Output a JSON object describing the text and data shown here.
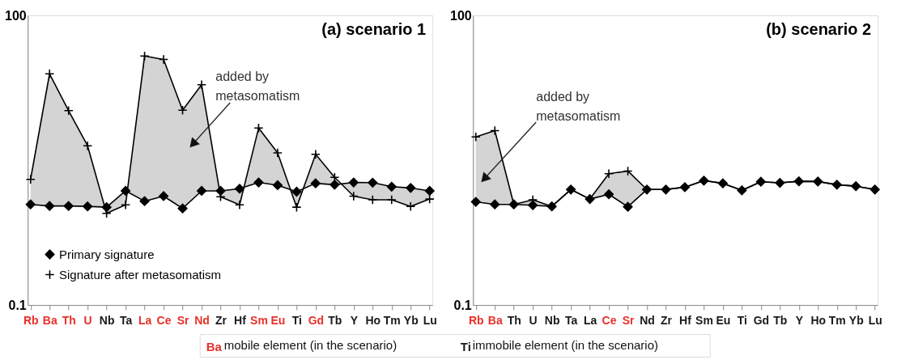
{
  "chart_data": [
    {
      "type": "line",
      "title": "(a) scenario 1",
      "log": true,
      "ylim": [
        0.1,
        100
      ],
      "yticks": [
        0.1,
        100
      ],
      "legend": "bottom left",
      "categories": [
        "Rb",
        "Ba",
        "Th",
        "U",
        "Nb",
        "Ta",
        "La",
        "Ce",
        "Sr",
        "Nd",
        "Zr",
        "Hf",
        "Sm",
        "Eu",
        "Ti",
        "Gd",
        "Tb",
        "Y",
        "Ho",
        "Tm",
        "Yb",
        "Lu"
      ],
      "colors": [
        "#e8312a",
        "#e8312a",
        "#e8312a",
        "#e8312a",
        "#1a1a1a",
        "#1a1a1a",
        "#e8312a",
        "#e8312a",
        "#e8312a",
        "#e8312a",
        "#1a1a1a",
        "#1a1a1a",
        "#e8312a",
        "#e8312a",
        "#1a1a1a",
        "#e8312a",
        "#1a1a1a",
        "#1a1a1a",
        "#1a1a1a",
        "#1a1a1a",
        "#1a1a1a",
        "#1a1a1a"
      ],
      "series": [
        {
          "name": "Primary signature",
          "color": "#000000",
          "marker": "diamond",
          "values": [
            1.1,
            1.06,
            1.06,
            1.05,
            1.03,
            1.52,
            1.19,
            1.34,
            1.0,
            1.52,
            1.52,
            1.6,
            1.86,
            1.74,
            1.49,
            1.82,
            1.76,
            1.86,
            1.85,
            1.68,
            1.63,
            1.52
          ]
        },
        {
          "name": "Signature after metasomatism",
          "color": "#000000",
          "marker": "cross",
          "values": [
            2.0,
            24.8,
            10.3,
            4.46,
            0.89,
            1.09,
            37.9,
            34.9,
            10.4,
            19.1,
            1.32,
            1.09,
            6.8,
            3.76,
            1.03,
            3.64,
            2.1,
            1.34,
            1.23,
            1.23,
            1.05,
            1.25
          ]
        }
      ],
      "annotations": [
        "added by metasomatism"
      ]
    },
    {
      "type": "line",
      "title": "(b) scenario 2",
      "log": true,
      "ylim": [
        0.1,
        100
      ],
      "yticks": [
        0.1,
        100
      ],
      "legend": "bottom left",
      "categories": [
        "Rb",
        "Ba",
        "Th",
        "U",
        "Nb",
        "Ta",
        "La",
        "Ce",
        "Sr",
        "Nd",
        "Zr",
        "Hf",
        "Sm",
        "Eu",
        "Ti",
        "Gd",
        "Tb",
        "Y",
        "Ho",
        "Tm",
        "Yb",
        "Lu"
      ],
      "colors": [
        "#e8312a",
        "#e8312a",
        "#1a1a1a",
        "#1a1a1a",
        "#1a1a1a",
        "#1a1a1a",
        "#1a1a1a",
        "#e8312a",
        "#e8312a",
        "#1a1a1a",
        "#1a1a1a",
        "#1a1a1a",
        "#1a1a1a",
        "#1a1a1a",
        "#1a1a1a",
        "#1a1a1a",
        "#1a1a1a",
        "#1a1a1a",
        "#1a1a1a",
        "#1a1a1a",
        "#1a1a1a",
        "#1a1a1a"
      ],
      "series": [
        {
          "name": "Primary signature",
          "color": "#000000",
          "marker": "diamond",
          "values": [
            1.17,
            1.1,
            1.1,
            1.08,
            1.05,
            1.57,
            1.25,
            1.4,
            1.04,
            1.57,
            1.57,
            1.66,
            1.94,
            1.82,
            1.54,
            1.89,
            1.84,
            1.91,
            1.9,
            1.76,
            1.7,
            1.57
          ]
        },
        {
          "name": "Signature after metasomatism",
          "color": "#000000",
          "marker": "cross",
          "values": [
            5.5,
            6.4,
            1.1,
            1.23,
            1.05,
            1.57,
            1.25,
            2.29,
            2.44,
            1.57,
            1.57,
            1.66,
            1.94,
            1.82,
            1.54,
            1.89,
            1.84,
            1.91,
            1.9,
            1.76,
            1.7,
            1.57
          ]
        }
      ],
      "annotations": [
        "added by metasomatism"
      ]
    },
    {
      "type": "other",
      "categories": [
        "Ba",
        "Ti"
      ],
      "colors": [
        "#e8312a",
        "#1a1a1a"
      ],
      "annotations": [
        "mobile element (in the scenario)",
        "immobile element (in the scenario)"
      ]
    }
  ]
}
